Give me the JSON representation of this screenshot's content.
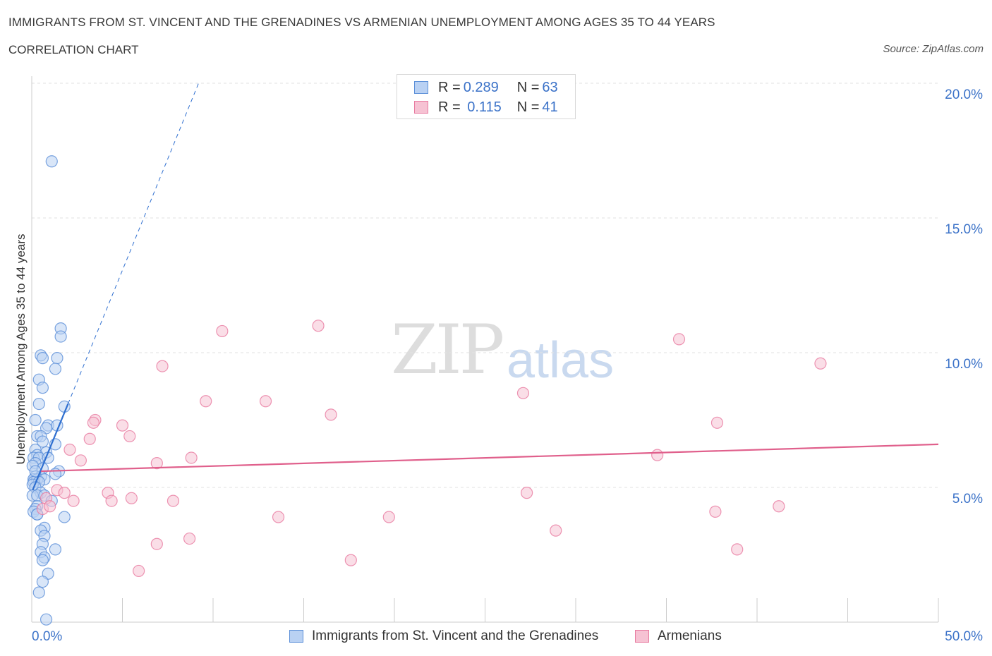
{
  "header": {
    "title": "IMMIGRANTS FROM ST. VINCENT AND THE GRENADINES VS ARMENIAN UNEMPLOYMENT AMONG AGES 35 TO 44 YEARS",
    "subtitle": "CORRELATION CHART",
    "source": "Source: ZipAtlas.com"
  },
  "watermark": {
    "zip": "ZIP",
    "atlas": "atlas"
  },
  "colors": {
    "blue": "#5b8fd8",
    "blue_fill": "#b9d1f3",
    "blue_line": "#2f6fd0",
    "pink": "#e87aa0",
    "pink_fill": "#f6c2d3",
    "pink_line": "#e0608c",
    "axis_text": "#3b72c8"
  },
  "legend": {
    "rows": [
      {
        "r_label": "R = ",
        "r_value": "0.289",
        "n_label": "N = ",
        "n_value": "63"
      },
      {
        "r_label": "R = ",
        "r_value": " 0.115",
        "n_label": "N = ",
        "n_value": "41"
      }
    ]
  },
  "chart_data": {
    "type": "scatter",
    "title": "IMMIGRANTS FROM ST. VINCENT AND THE GRENADINES VS ARMENIAN UNEMPLOYMENT AMONG AGES 35 TO 44 YEARS",
    "xlabel": "",
    "ylabel": "Unemployment Among Ages 35 to 44 years",
    "xlim": [
      0,
      50
    ],
    "ylim": [
      0,
      20
    ],
    "x_tick_labels": [
      "0.0%",
      "50.0%"
    ],
    "y_ticks": [
      5,
      10,
      15,
      20
    ],
    "y_tick_labels": [
      "5.0%",
      "10.0%",
      "15.0%",
      "20.0%"
    ],
    "grid": true,
    "series": [
      {
        "name": "Immigrants from St. Vincent and the Grenadines",
        "color": "#5b8fd8",
        "R": 0.289,
        "N": 63,
        "trend": {
          "x0": 0.05,
          "y0": 4.9,
          "x1": 2.0,
          "y1": 8.1,
          "ext_x1": 9.2,
          "ext_y1": 20.0
        },
        "points": [
          [
            1.1,
            17.1
          ],
          [
            1.6,
            10.9
          ],
          [
            1.6,
            10.6
          ],
          [
            0.5,
            9.9
          ],
          [
            0.6,
            9.8
          ],
          [
            1.4,
            9.8
          ],
          [
            1.3,
            9.4
          ],
          [
            0.4,
            9.0
          ],
          [
            0.6,
            8.7
          ],
          [
            0.4,
            8.1
          ],
          [
            1.8,
            8.0
          ],
          [
            0.2,
            7.5
          ],
          [
            0.9,
            7.3
          ],
          [
            1.4,
            7.3
          ],
          [
            0.8,
            7.2
          ],
          [
            0.3,
            6.9
          ],
          [
            0.5,
            6.9
          ],
          [
            0.6,
            6.7
          ],
          [
            1.3,
            6.6
          ],
          [
            0.2,
            6.4
          ],
          [
            0.8,
            6.3
          ],
          [
            0.3,
            6.2
          ],
          [
            0.1,
            6.1
          ],
          [
            0.4,
            6.1
          ],
          [
            0.9,
            6.1
          ],
          [
            0.2,
            5.9
          ],
          [
            0.05,
            5.8
          ],
          [
            0.6,
            5.7
          ],
          [
            1.5,
            5.6
          ],
          [
            1.3,
            5.5
          ],
          [
            0.2,
            5.4
          ],
          [
            0.5,
            5.4
          ],
          [
            0.1,
            5.3
          ],
          [
            0.3,
            5.3
          ],
          [
            0.7,
            5.3
          ],
          [
            0.1,
            5.2
          ],
          [
            0.4,
            5.2
          ],
          [
            0.05,
            5.1
          ],
          [
            0.2,
            5.0
          ],
          [
            0.5,
            4.8
          ],
          [
            0.05,
            4.7
          ],
          [
            0.3,
            4.7
          ],
          [
            0.7,
            4.7
          ],
          [
            1.1,
            4.5
          ],
          [
            0.3,
            4.3
          ],
          [
            0.2,
            4.2
          ],
          [
            0.1,
            4.1
          ],
          [
            0.3,
            4.0
          ],
          [
            1.8,
            3.9
          ],
          [
            0.7,
            3.5
          ],
          [
            0.5,
            3.4
          ],
          [
            0.7,
            3.2
          ],
          [
            0.6,
            2.9
          ],
          [
            1.3,
            2.7
          ],
          [
            0.5,
            2.6
          ],
          [
            0.7,
            2.4
          ],
          [
            0.6,
            2.3
          ],
          [
            0.9,
            1.8
          ],
          [
            0.6,
            1.5
          ],
          [
            0.4,
            1.1
          ],
          [
            0.8,
            0.1
          ],
          [
            0.3,
            4.0
          ],
          [
            0.2,
            5.6
          ]
        ]
      },
      {
        "name": "Armenians",
        "color": "#e87aa0",
        "R": 0.115,
        "N": 41,
        "trend": {
          "x0": 0.5,
          "y0": 5.6,
          "x1": 50.0,
          "y1": 6.6
        },
        "points": [
          [
            10.5,
            10.8
          ],
          [
            15.8,
            11.0
          ],
          [
            35.7,
            10.5
          ],
          [
            43.5,
            9.6
          ],
          [
            7.2,
            9.5
          ],
          [
            27.1,
            8.5
          ],
          [
            9.6,
            8.2
          ],
          [
            12.9,
            8.2
          ],
          [
            16.5,
            7.7
          ],
          [
            3.5,
            7.5
          ],
          [
            3.4,
            7.4
          ],
          [
            5.0,
            7.3
          ],
          [
            37.8,
            7.4
          ],
          [
            3.2,
            6.8
          ],
          [
            5.4,
            6.9
          ],
          [
            2.1,
            6.4
          ],
          [
            2.7,
            6.0
          ],
          [
            6.9,
            5.9
          ],
          [
            8.8,
            6.1
          ],
          [
            34.5,
            6.2
          ],
          [
            1.4,
            4.9
          ],
          [
            1.8,
            4.8
          ],
          [
            4.2,
            4.8
          ],
          [
            27.3,
            4.8
          ],
          [
            4.4,
            4.5
          ],
          [
            5.5,
            4.6
          ],
          [
            7.8,
            4.5
          ],
          [
            2.3,
            4.5
          ],
          [
            0.8,
            4.6
          ],
          [
            0.6,
            4.2
          ],
          [
            13.6,
            3.9
          ],
          [
            19.7,
            3.9
          ],
          [
            37.7,
            4.1
          ],
          [
            41.2,
            4.3
          ],
          [
            28.9,
            3.4
          ],
          [
            8.7,
            3.1
          ],
          [
            6.9,
            2.9
          ],
          [
            38.9,
            2.7
          ],
          [
            17.6,
            2.3
          ],
          [
            5.9,
            1.9
          ],
          [
            1.0,
            4.3
          ]
        ]
      }
    ]
  }
}
